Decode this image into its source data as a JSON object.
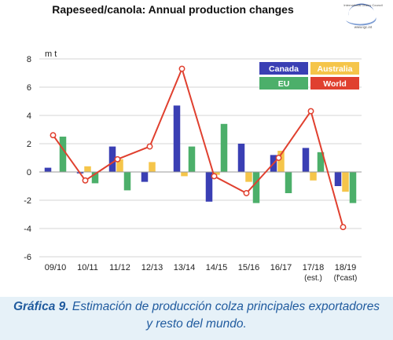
{
  "logo": {
    "name": "International Grains Council",
    "url": "www.igc.int"
  },
  "caption": {
    "label": "Gráfica 9.",
    "line1": "Estimación de producción colza principales exportadores",
    "line2": "y resto del mundo."
  },
  "colors": {
    "Canada": "#3a3fb4",
    "Australia": "#f5c54a",
    "EU": "#4caf6a",
    "World": "#e0402f"
  },
  "chart_data": {
    "type": "bar",
    "title": "Rapeseed/canola: Annual production changes",
    "ylabel": "m t",
    "ylim": [
      -6,
      8
    ],
    "yticks": [
      -6,
      -4,
      -2,
      0,
      2,
      4,
      6,
      8
    ],
    "grid": true,
    "legend_position": "top-right",
    "categories": [
      "09/10",
      "10/11",
      "11/12",
      "12/13",
      "13/14",
      "14/15",
      "15/16",
      "16/17",
      "17/18",
      "18/19"
    ],
    "category_sublabels": [
      "",
      "",
      "",
      "",
      "",
      "",
      "",
      "",
      "(est.)",
      "(f'cast)"
    ],
    "series": [
      {
        "name": "Canada",
        "type": "bar",
        "values": [
          0.3,
          -0.1,
          1.8,
          -0.7,
          4.7,
          -2.1,
          2.0,
          1.2,
          1.7,
          -1.0
        ]
      },
      {
        "name": "Australia",
        "type": "bar",
        "values": [
          0.0,
          0.4,
          0.9,
          0.7,
          -0.3,
          -0.2,
          -0.7,
          1.5,
          -0.6,
          -1.4
        ]
      },
      {
        "name": "EU",
        "type": "bar",
        "values": [
          2.5,
          -0.8,
          -1.3,
          0.0,
          1.8,
          3.4,
          -2.2,
          -1.5,
          1.4,
          -2.2
        ]
      },
      {
        "name": "World",
        "type": "line",
        "values": [
          2.6,
          -0.6,
          0.9,
          1.8,
          7.3,
          -0.3,
          -1.5,
          1.0,
          4.3,
          -3.9
        ]
      }
    ]
  }
}
